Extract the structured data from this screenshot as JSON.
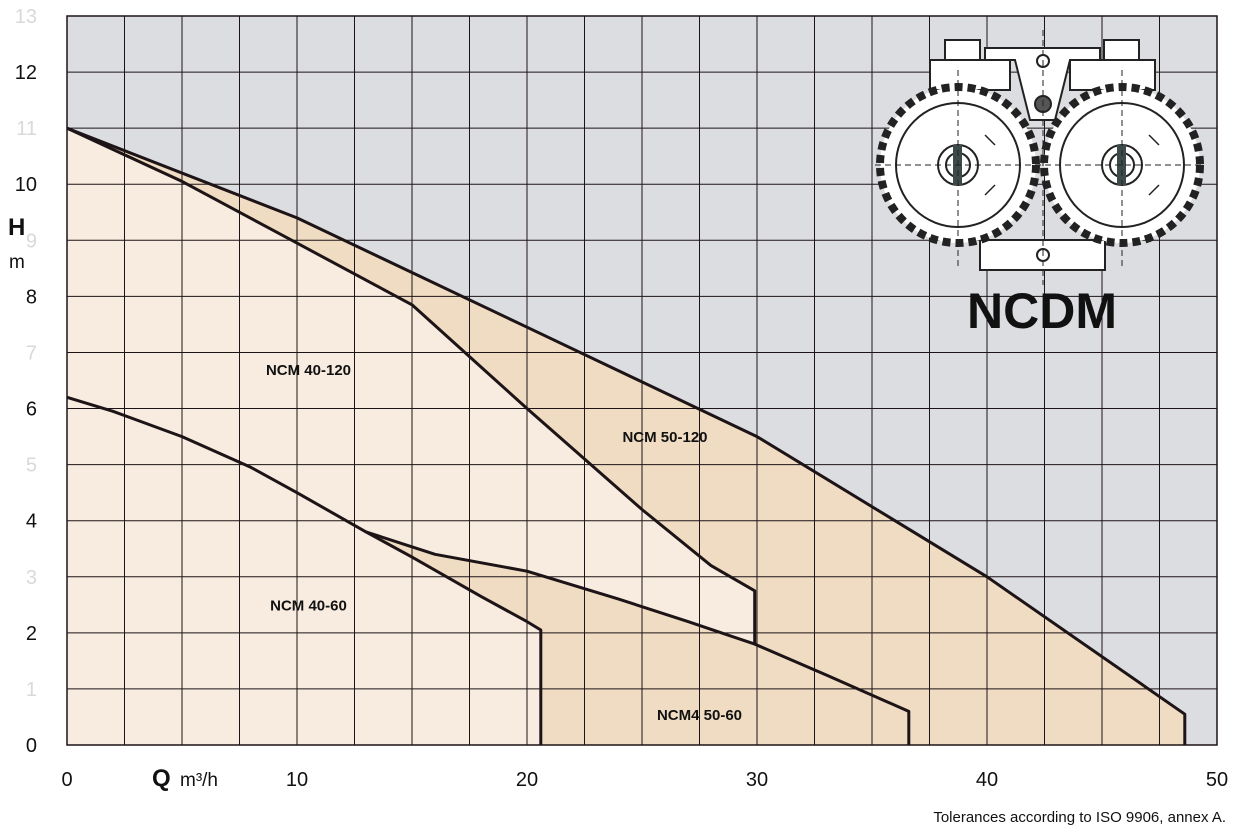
{
  "chart_data": {
    "type": "area",
    "title": "",
    "product_name": "NCDM",
    "xlabel": {
      "symbol": "Q",
      "unit": "m³/h"
    },
    "ylabel": {
      "symbol": "H",
      "unit": "m"
    },
    "xlim": [
      0,
      50
    ],
    "ylim": [
      0,
      13
    ],
    "x_ticks": [
      "0",
      "10",
      "20",
      "30",
      "40",
      "50"
    ],
    "y_ticks": [
      "0",
      "1",
      "2",
      "3",
      "4",
      "5",
      "6",
      "7",
      "8",
      "9",
      "10",
      "11",
      "12",
      "13"
    ],
    "y_ticks_faint": [
      "1",
      "3",
      "5",
      "7",
      "9",
      "11",
      "13"
    ],
    "grid": true,
    "colors": {
      "background": "#dcdde0",
      "region_light": "#f8ebdf",
      "region_mid": "#f0dcc2",
      "curve": "#1c1416",
      "grid": "#1c1416"
    },
    "series": [
      {
        "name": "NCM 40-60",
        "points": [
          [
            0,
            6.2
          ],
          [
            2,
            5.95
          ],
          [
            5,
            5.5
          ],
          [
            8,
            4.95
          ],
          [
            10,
            4.5
          ],
          [
            13,
            3.8
          ],
          [
            15,
            3.35
          ],
          [
            18,
            2.65
          ],
          [
            20,
            2.2
          ],
          [
            20.6,
            2.05
          ],
          [
            20.6,
            0
          ]
        ]
      },
      {
        "name": "NCM4 50-60",
        "points": [
          [
            13,
            3.8
          ],
          [
            16,
            3.4
          ],
          [
            20,
            3.1
          ],
          [
            24,
            2.6
          ],
          [
            27,
            2.2
          ],
          [
            29.9,
            1.8
          ],
          [
            33,
            1.25
          ],
          [
            36.6,
            0.6
          ],
          [
            36.6,
            0
          ]
        ]
      },
      {
        "name": "NCM 40-120",
        "points": [
          [
            0,
            11
          ],
          [
            5,
            10.05
          ],
          [
            10,
            8.95
          ],
          [
            15,
            7.85
          ],
          [
            20,
            6.0
          ],
          [
            22.5,
            5.1
          ],
          [
            25,
            4.2
          ],
          [
            28,
            3.2
          ],
          [
            29.9,
            2.75
          ],
          [
            29.9,
            1.8
          ]
        ]
      },
      {
        "name": "NCM 50-120",
        "points": [
          [
            0,
            11
          ],
          [
            10,
            9.4
          ],
          [
            20,
            7.45
          ],
          [
            30,
            5.5
          ],
          [
            40,
            3.0
          ],
          [
            48.6,
            0.55
          ],
          [
            48.6,
            0
          ]
        ]
      }
    ],
    "annotations": [
      {
        "text": "NCM 40-120",
        "x": 10.5,
        "y": 6.6
      },
      {
        "text": "NCM 50-120",
        "x": 26,
        "y": 5.4
      },
      {
        "text": "NCM 40-60",
        "x": 10.5,
        "y": 2.4
      },
      {
        "text": "NCM4 50-60",
        "x": 27.5,
        "y": 0.45
      }
    ]
  },
  "footnote": "Tolerances according to ISO 9906, annex A."
}
